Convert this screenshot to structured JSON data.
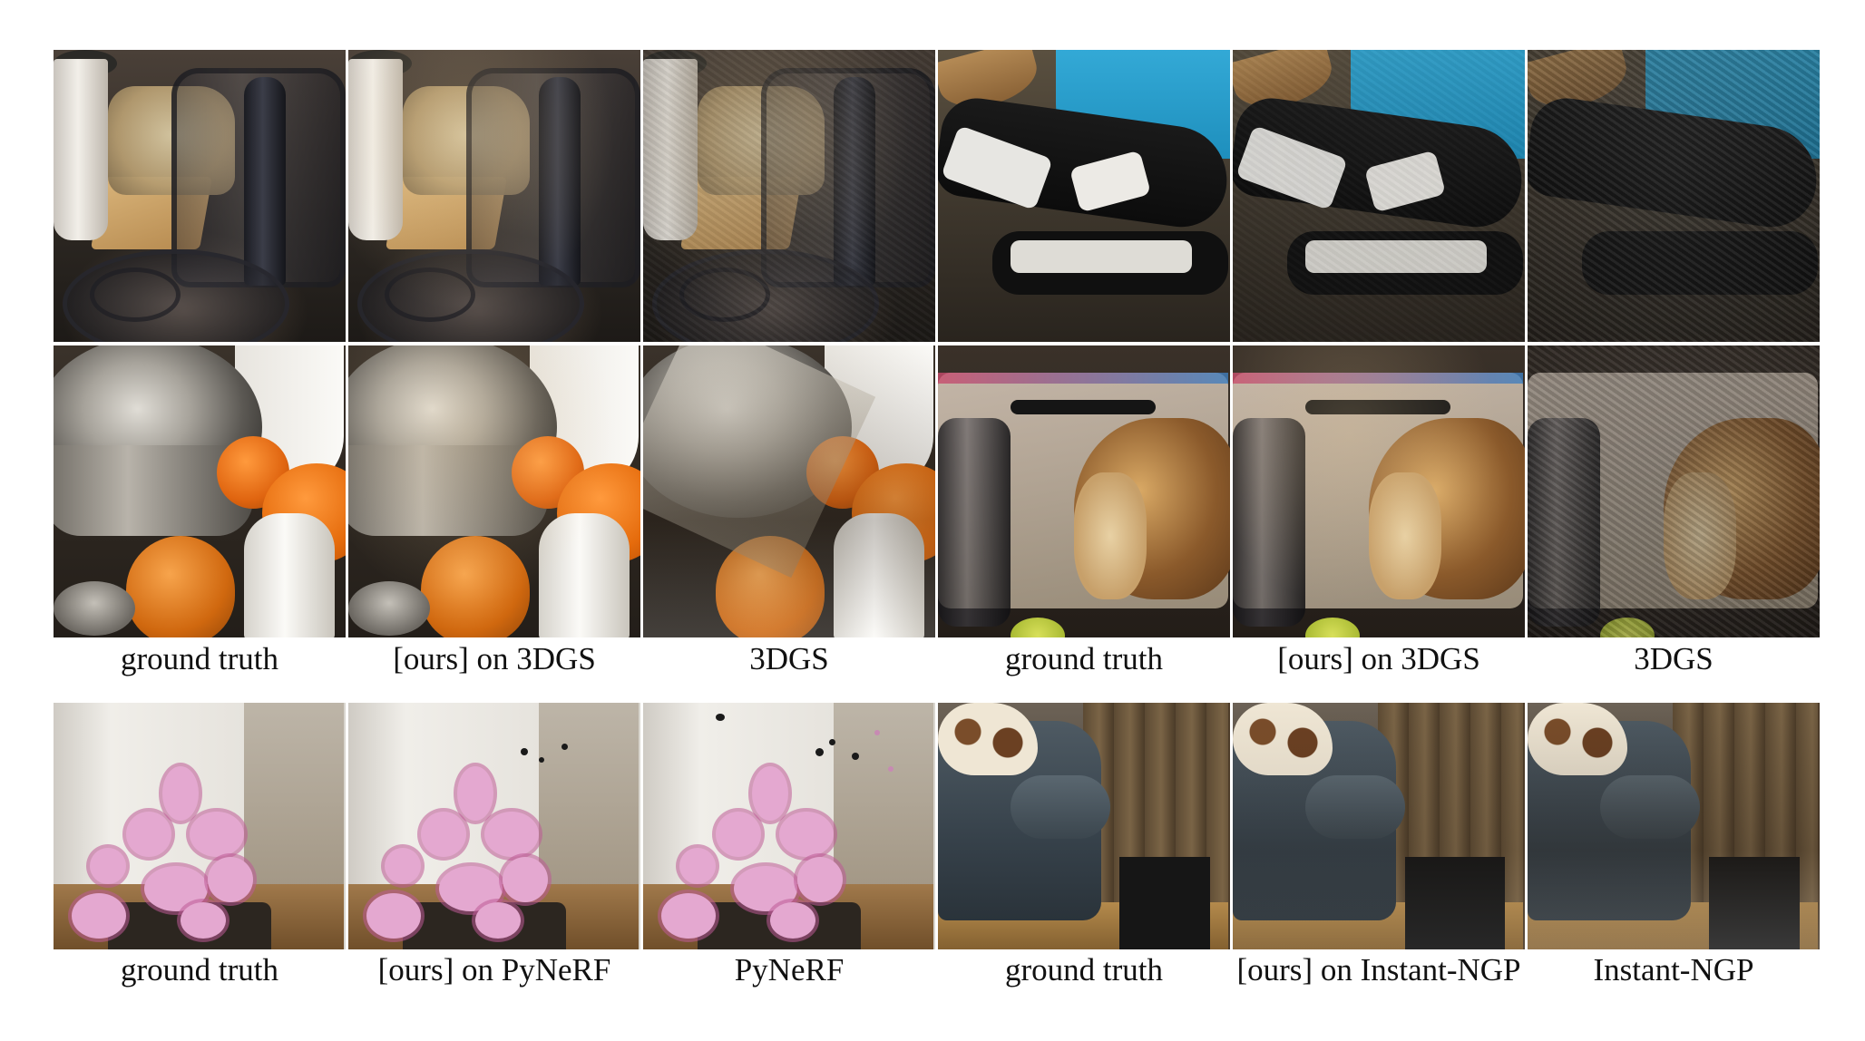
{
  "figure": {
    "row1_2_captions": [
      "ground truth",
      "[ours] on 3DGS",
      "3DGS",
      "ground truth",
      "[ours] on 3DGS",
      "3DGS"
    ],
    "row3_captions": [
      "ground truth",
      "[ours] on PyNeRF",
      "PyNeRF",
      "ground truth",
      "[ours] on Instant-NGP",
      "Instant-NGP"
    ]
  }
}
